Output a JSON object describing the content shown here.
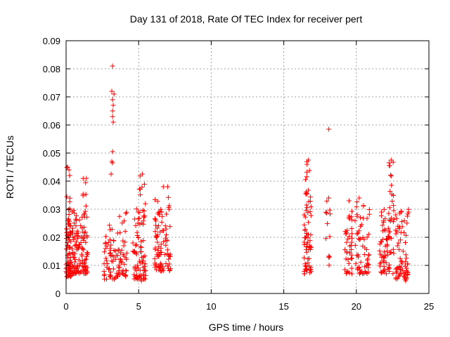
{
  "chart_data": {
    "type": "scatter",
    "title": "Day 131 of 2018, Rate Of TEC Index for receiver pert",
    "xlabel": "GPS time / hours",
    "ylabel": "ROTI / TECUs",
    "xlim": [
      0,
      25
    ],
    "ylim": [
      0,
      0.09
    ],
    "xticks": [
      0,
      5,
      10,
      15,
      20,
      25
    ],
    "xtick_labels": [
      "0",
      "5",
      "10",
      "15",
      "20",
      "25"
    ],
    "yticks": [
      0,
      0.01,
      0.02,
      0.03,
      0.04,
      0.05,
      0.06,
      0.07,
      0.08,
      0.09
    ],
    "ytick_labels": [
      "0",
      "0.01",
      "0.02",
      "0.03",
      "0.04",
      "0.05",
      "0.06",
      "0.07",
      "0.08",
      "0.09"
    ],
    "grid": true,
    "marker": "+",
    "color": "#ff0000",
    "series": [
      {
        "name": "ROTI",
        "clusters": [
          {
            "x_range": [
              0.0,
              0.35
            ],
            "y_range": [
              0.006,
              0.025
            ],
            "n": 70
          },
          {
            "x_range": [
              0.05,
              0.3
            ],
            "y_range": [
              0.025,
              0.045
            ],
            "n": 14
          },
          {
            "x_range": [
              0.4,
              0.9
            ],
            "y_range": [
              0.007,
              0.03
            ],
            "n": 60
          },
          {
            "x_range": [
              0.9,
              1.5
            ],
            "y_range": [
              0.007,
              0.03
            ],
            "n": 60
          },
          {
            "x_range": [
              1.1,
              1.4
            ],
            "y_range": [
              0.03,
              0.041
            ],
            "n": 6
          },
          {
            "x_range": [
              2.6,
              3.5
            ],
            "y_range": [
              0.005,
              0.025
            ],
            "n": 50
          },
          {
            "x_range": [
              3.5,
              4.2
            ],
            "y_range": [
              0.006,
              0.03
            ],
            "n": 45
          },
          {
            "x_range": [
              4.6,
              5.5
            ],
            "y_range": [
              0.005,
              0.035
            ],
            "n": 80
          },
          {
            "x_range": [
              5.0,
              5.4
            ],
            "y_range": [
              0.035,
              0.043
            ],
            "n": 6
          },
          {
            "x_range": [
              6.1,
              7.2
            ],
            "y_range": [
              0.008,
              0.035
            ],
            "n": 90
          },
          {
            "x_range": [
              16.4,
              16.9
            ],
            "y_range": [
              0.007,
              0.035
            ],
            "n": 60
          },
          {
            "x_range": [
              16.5,
              16.8
            ],
            "y_range": [
              0.035,
              0.048
            ],
            "n": 10
          },
          {
            "x_range": [
              17.9,
              18.2
            ],
            "y_range": [
              0.01,
              0.034
            ],
            "n": 12
          },
          {
            "x_range": [
              19.2,
              19.7
            ],
            "y_range": [
              0.007,
              0.03
            ],
            "n": 40
          },
          {
            "x_range": [
              19.9,
              20.9
            ],
            "y_range": [
              0.007,
              0.035
            ],
            "n": 60
          },
          {
            "x_range": [
              21.6,
              22.6
            ],
            "y_range": [
              0.007,
              0.03
            ],
            "n": 70
          },
          {
            "x_range": [
              22.2,
              22.6
            ],
            "y_range": [
              0.03,
              0.047
            ],
            "n": 12
          },
          {
            "x_range": [
              22.7,
              23.6
            ],
            "y_range": [
              0.005,
              0.03
            ],
            "n": 70
          }
        ],
        "points": [
          [
            3.2,
            0.081
          ],
          [
            3.15,
            0.072
          ],
          [
            3.3,
            0.071
          ],
          [
            3.2,
            0.069
          ],
          [
            3.25,
            0.067
          ],
          [
            3.2,
            0.065
          ],
          [
            3.2,
            0.063
          ],
          [
            3.25,
            0.061
          ],
          [
            3.2,
            0.0505
          ],
          [
            3.15,
            0.047
          ],
          [
            3.2,
            0.0465
          ],
          [
            3.1,
            0.0425
          ],
          [
            18.1,
            0.0585
          ],
          [
            0.2,
            0.044
          ],
          [
            0.25,
            0.042
          ],
          [
            0.1,
            0.045
          ],
          [
            1.4,
            0.041
          ],
          [
            5.25,
            0.0425
          ],
          [
            6.7,
            0.038
          ],
          [
            7.0,
            0.038
          ],
          [
            16.7,
            0.0475
          ],
          [
            16.6,
            0.046
          ],
          [
            22.4,
            0.0475
          ],
          [
            22.3,
            0.0455
          ],
          [
            18.1,
            0.034
          ],
          [
            20.2,
            0.034
          ],
          [
            19.5,
            0.033
          ],
          [
            23.6,
            0.029
          ],
          [
            23.4,
            0.0045
          ],
          [
            5.2,
            0.0045
          ]
        ]
      }
    ]
  }
}
